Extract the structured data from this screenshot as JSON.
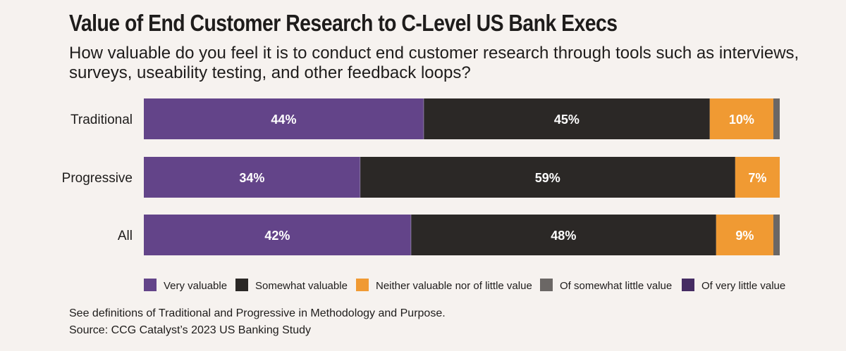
{
  "chart_data": {
    "type": "bar",
    "orientation": "horizontal",
    "stacked": true,
    "title": "Value of End Customer Research to C-Level US Bank Execs",
    "subtitle": "How valuable do you feel it is to conduct end customer research through tools such as interviews, surveys, useability testing, and other feedback loops?",
    "categories": [
      "Traditional",
      "Progressive",
      "All"
    ],
    "series": [
      {
        "name": "Very valuable",
        "color": "#634489",
        "values": [
          44,
          34,
          42
        ],
        "labels": [
          "44%",
          "34%",
          "42%"
        ]
      },
      {
        "name": "Somewhat valuable",
        "color": "#2b2826",
        "values": [
          45,
          59,
          48
        ],
        "labels": [
          "45%",
          "59%",
          "48%"
        ]
      },
      {
        "name": "Neither valuable nor of little value",
        "color": "#f09a33",
        "values": [
          10,
          7,
          9
        ],
        "labels": [
          "10%",
          "7%",
          "9%"
        ]
      },
      {
        "name": "Of somewhat little value",
        "color": "#6b6765",
        "values": [
          1,
          0,
          1
        ],
        "labels": [
          "",
          "",
          ""
        ]
      },
      {
        "name": "Of very little value",
        "color": "#452c63",
        "values": [
          0,
          0,
          0
        ],
        "labels": [
          "",
          "",
          ""
        ]
      }
    ],
    "xlim": [
      0,
      100
    ],
    "legend_position": "bottom-right",
    "grid": false
  },
  "notes": {
    "definitions": "See definitions of Traditional and Progressive in Methodology and Purpose.",
    "source": "Source: CCG Catalyst’s 2023 US Banking Study"
  }
}
